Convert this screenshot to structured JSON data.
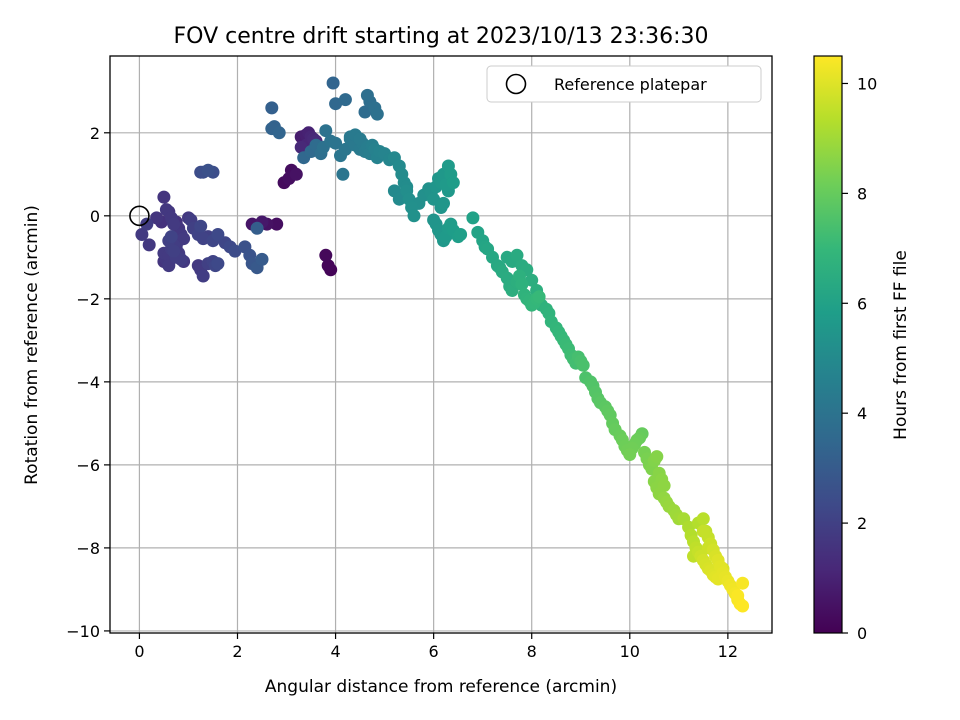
{
  "chart_data": {
    "type": "scatter",
    "title": "FOV centre drift starting at 2023/10/13 23:36:30",
    "xlabel": "Angular distance from reference (arcmin)",
    "ylabel": "Rotation from reference (arcmin)",
    "colorbar_label": "Hours from first FF file",
    "colormap": "viridis",
    "xlim": [
      -0.6,
      12.9
    ],
    "ylim": [
      -10.05,
      3.85
    ],
    "clim": [
      0,
      10.5
    ],
    "xticks": [
      0,
      2,
      4,
      6,
      8,
      10,
      12
    ],
    "yticks": [
      -10,
      -8,
      -6,
      -4,
      -2,
      0,
      2
    ],
    "cticks": [
      0,
      2,
      4,
      6,
      8,
      10
    ],
    "grid": true,
    "legend": {
      "position": "top-right",
      "label": "Reference platepar"
    },
    "reference_point": {
      "x": 0,
      "y": 0
    },
    "colors": {
      "viridis": [
        "#440154",
        "#482878",
        "#3e4a89",
        "#31688e",
        "#26828e",
        "#1f9e89",
        "#35b779",
        "#6ece58",
        "#b5de2b",
        "#fde725"
      ]
    },
    "series": [
      {
        "x": [
          0.05,
          0.15,
          0.2,
          0.35,
          0.45,
          0.5,
          0.55,
          0.6,
          0.65,
          0.7,
          0.75,
          0.8,
          0.85,
          0.5,
          0.55,
          0.6,
          0.65,
          0.7,
          0.75,
          0.8,
          0.85,
          0.9,
          0.5,
          0.6,
          0.7,
          0.8,
          0.6,
          0.65,
          0.7,
          0.75,
          0.9,
          1.0,
          1.05,
          1.1,
          1.2,
          1.25,
          1.3,
          1.4,
          1.5,
          1.6,
          1.75,
          1.85,
          1.95,
          1.25,
          1.3,
          1.4,
          1.2,
          1.25,
          1.3,
          1.4,
          1.5,
          1.55,
          1.6,
          1.5,
          2.15,
          2.25,
          2.3,
          2.4,
          2.5
        ],
        "y": [
          -0.45,
          -0.2,
          -0.7,
          -0.05,
          -0.15,
          0.45,
          0.15,
          0.1,
          -0.05,
          -0.2,
          -0.15,
          -0.3,
          -0.45,
          -0.9,
          -1.05,
          -0.95,
          -0.8,
          -1.0,
          -0.75,
          -0.9,
          -1.05,
          -1.1,
          -1.1,
          -1.2,
          -0.7,
          -0.6,
          -0.6,
          -0.5,
          -0.85,
          -1.0,
          -0.55,
          -0.05,
          -0.1,
          -0.3,
          -0.45,
          -0.25,
          -0.55,
          -0.5,
          -0.6,
          -0.45,
          -0.65,
          -0.75,
          -0.85,
          1.05,
          1.05,
          1.1,
          -1.2,
          -1.3,
          -1.45,
          -1.15,
          -1.1,
          -1.2,
          -1.15,
          1.05,
          -0.75,
          -0.95,
          -1.15,
          -1.25,
          -1.05
        ],
        "t": [
          1.8,
          1.9,
          1.7,
          1.6,
          1.5,
          1.6,
          1.7,
          1.6,
          1.7,
          1.8,
          1.5,
          1.6,
          1.7,
          1.8,
          1.7,
          1.8,
          1.9,
          1.6,
          1.7,
          1.8,
          1.9,
          1.7,
          1.6,
          1.8,
          1.9,
          1.8,
          2.0,
          2.1,
          2.0,
          1.9,
          1.8,
          1.7,
          1.9,
          2.0,
          2.1,
          2.2,
          2.1,
          2.0,
          2.2,
          2.3,
          2.2,
          2.3,
          2.4,
          2.4,
          2.5,
          2.6,
          1.7,
          1.8,
          1.9,
          2.0,
          2.1,
          2.2,
          2.3,
          2.5,
          2.6,
          2.7,
          2.8,
          2.9,
          3.0
        ]
      },
      {
        "x": [
          2.3,
          2.5,
          2.6,
          2.8,
          2.95,
          3.05,
          3.1,
          3.2,
          3.3,
          3.4,
          3.45,
          3.5,
          3.55,
          3.6,
          3.3,
          3.4,
          3.5,
          3.8,
          3.85,
          3.9
        ],
        "y": [
          -0.2,
          -0.15,
          -0.2,
          -0.2,
          0.8,
          0.9,
          1.1,
          1.0,
          1.9,
          1.95,
          2.0,
          1.9,
          1.85,
          1.8,
          1.65,
          1.7,
          1.6,
          -0.95,
          -1.2,
          -1.3
        ],
        "t": [
          0.6,
          0.7,
          0.5,
          0.4,
          0.3,
          0.4,
          0.35,
          0.5,
          0.8,
          0.9,
          1.0,
          1.1,
          1.2,
          1.3,
          1.2,
          1.1,
          1.0,
          0.2,
          0.15,
          0.1
        ]
      },
      {
        "x": [
          2.4,
          2.7,
          2.75,
          2.7,
          2.85,
          3.35,
          3.5,
          3.6,
          3.7,
          3.75,
          3.8,
          3.9,
          4.0,
          4.1,
          4.2,
          4.3,
          4.4,
          4.5,
          4.55,
          4.6,
          4.65,
          4.7,
          4.75,
          4.8,
          4.85,
          4.9,
          5.0,
          5.1,
          4.0,
          4.2,
          4.6,
          4.65,
          4.7,
          4.8,
          4.85,
          3.95,
          4.3,
          4.4,
          4.5,
          4.15
        ],
        "y": [
          -0.3,
          2.6,
          2.15,
          2.1,
          2.0,
          1.4,
          1.55,
          1.7,
          1.5,
          1.65,
          2.05,
          1.8,
          1.75,
          1.45,
          1.6,
          1.85,
          1.7,
          1.6,
          1.75,
          1.55,
          1.65,
          1.5,
          1.7,
          1.6,
          1.4,
          1.55,
          1.5,
          1.35,
          2.7,
          2.8,
          2.5,
          2.9,
          2.75,
          2.6,
          2.45,
          3.2,
          1.9,
          1.95,
          1.85,
          1.0
        ],
        "t": [
          3.1,
          3.2,
          3.3,
          3.3,
          3.4,
          3.5,
          3.6,
          3.7,
          3.8,
          3.9,
          3.95,
          4.0,
          4.05,
          4.1,
          4.15,
          4.2,
          4.25,
          4.3,
          4.35,
          4.4,
          4.45,
          4.5,
          4.55,
          4.6,
          4.65,
          4.7,
          4.75,
          4.8,
          3.5,
          3.6,
          3.7,
          3.8,
          3.75,
          3.85,
          3.9,
          3.4,
          4.2,
          4.3,
          4.35,
          4.1
        ]
      },
      {
        "x": [
          5.2,
          5.3,
          5.35,
          5.4,
          5.45,
          5.5,
          5.55,
          5.6,
          5.2,
          5.3,
          5.45,
          5.7,
          5.8,
          5.9,
          5.95,
          6.0,
          6.05,
          6.1,
          6.15,
          6.2,
          6.25,
          6.3,
          6.35,
          6.4,
          6.3,
          6.2,
          6.15,
          6.0,
          6.05,
          6.1,
          6.15,
          6.2,
          6.25,
          6.3,
          6.35,
          6.4,
          6.5,
          6.55
        ],
        "y": [
          1.4,
          1.2,
          1.0,
          0.8,
          0.6,
          0.4,
          0.2,
          0.0,
          0.6,
          0.4,
          0.7,
          0.3,
          0.5,
          0.65,
          0.55,
          0.4,
          0.7,
          0.9,
          0.8,
          1.0,
          0.75,
          1.2,
          1.0,
          0.8,
          0.6,
          0.3,
          0.2,
          -0.1,
          -0.2,
          -0.35,
          -0.45,
          -0.6,
          -0.5,
          -0.3,
          -0.2,
          -0.35,
          -0.5,
          -0.45
        ],
        "t": [
          4.9,
          5.0,
          5.05,
          5.1,
          5.15,
          5.2,
          5.25,
          5.3,
          4.95,
          5.0,
          5.1,
          5.2,
          5.25,
          5.3,
          5.35,
          5.4,
          5.45,
          5.5,
          5.55,
          5.6,
          5.65,
          5.7,
          5.75,
          5.8,
          5.6,
          5.5,
          5.45,
          5.4,
          5.45,
          5.5,
          5.55,
          5.6,
          5.65,
          5.7,
          5.75,
          5.8,
          5.85,
          5.9
        ]
      },
      {
        "x": [
          6.8,
          6.9,
          7.0,
          7.05,
          7.1,
          7.2,
          7.3,
          7.35,
          7.4,
          7.5,
          7.55,
          7.6,
          7.7,
          7.75,
          7.8,
          7.85,
          7.9,
          7.95,
          8.0,
          8.05,
          8.1,
          8.15,
          7.5,
          7.6,
          7.7,
          7.8,
          7.9,
          8.0,
          8.1,
          8.2,
          8.3,
          8.35,
          8.4,
          8.5,
          8.55,
          8.6,
          8.65,
          8.7,
          8.75,
          8.8,
          8.85,
          8.9,
          8.95,
          9.0,
          9.05
        ],
        "y": [
          -0.05,
          -0.4,
          -0.6,
          -0.75,
          -0.8,
          -1.0,
          -1.2,
          -1.25,
          -1.35,
          -1.5,
          -1.7,
          -1.8,
          -1.6,
          -1.45,
          -1.65,
          -1.9,
          -2.0,
          -2.05,
          -2.15,
          -2.1,
          -2.0,
          -1.95,
          -1.0,
          -1.1,
          -0.95,
          -1.2,
          -1.3,
          -1.55,
          -1.8,
          -2.15,
          -2.25,
          -2.35,
          -2.55,
          -2.7,
          -2.8,
          -2.9,
          -3.0,
          -3.1,
          -3.2,
          -3.35,
          -3.45,
          -3.55,
          -3.4,
          -3.5,
          -3.6
        ],
        "t": [
          6.0,
          6.05,
          6.1,
          6.15,
          6.2,
          6.25,
          6.3,
          6.35,
          6.4,
          6.45,
          6.5,
          6.55,
          6.6,
          6.65,
          6.7,
          6.75,
          6.8,
          6.85,
          6.9,
          6.95,
          7.0,
          7.05,
          6.3,
          6.35,
          6.4,
          6.45,
          6.5,
          6.55,
          6.6,
          6.7,
          6.75,
          6.8,
          6.85,
          6.9,
          6.95,
          7.0,
          7.05,
          7.1,
          7.15,
          7.2,
          7.25,
          7.3,
          7.35,
          7.4,
          7.45
        ]
      },
      {
        "x": [
          9.1,
          9.2,
          9.25,
          9.3,
          9.35,
          9.4,
          9.5,
          9.55,
          9.6,
          9.65,
          9.7,
          9.8,
          9.85,
          9.9,
          9.95,
          10.0,
          10.05,
          10.1,
          10.15,
          10.2,
          10.25,
          10.3,
          10.35,
          10.4,
          10.45,
          10.5,
          10.55,
          10.6,
          10.65,
          10.7,
          10.5,
          10.55,
          10.6,
          10.7,
          10.75,
          10.8,
          10.9,
          10.95,
          11.0
        ],
        "y": [
          -3.9,
          -4.0,
          -4.1,
          -4.25,
          -4.4,
          -4.5,
          -4.6,
          -4.7,
          -4.8,
          -5.0,
          -5.15,
          -5.3,
          -5.4,
          -5.55,
          -5.65,
          -5.75,
          -5.6,
          -5.5,
          -5.4,
          -5.35,
          -5.25,
          -5.7,
          -5.85,
          -6.0,
          -6.1,
          -5.9,
          -5.8,
          -6.2,
          -6.35,
          -6.5,
          -6.4,
          -6.55,
          -6.7,
          -6.8,
          -6.9,
          -7.0,
          -7.1,
          -7.2,
          -7.3
        ],
        "t": [
          7.5,
          7.55,
          7.6,
          7.65,
          7.7,
          7.75,
          7.8,
          7.85,
          7.9,
          7.95,
          8.0,
          8.05,
          8.1,
          8.15,
          8.2,
          8.25,
          8.2,
          8.15,
          8.1,
          8.05,
          8.0,
          8.3,
          8.35,
          8.4,
          8.45,
          8.5,
          8.55,
          8.6,
          8.65,
          8.7,
          8.6,
          8.65,
          8.7,
          8.75,
          8.8,
          8.85,
          8.9,
          8.95,
          9.0
        ]
      },
      {
        "x": [
          11.1,
          11.2,
          11.25,
          11.3,
          11.35,
          11.4,
          11.45,
          11.5,
          11.55,
          11.6,
          11.65,
          11.7,
          11.75,
          11.8,
          11.85,
          11.9,
          11.3,
          11.4,
          11.5,
          11.55,
          11.6,
          11.65,
          11.7,
          11.75,
          11.8,
          11.85,
          11.9,
          11.95,
          12.0,
          12.05,
          12.1,
          12.15,
          12.2,
          12.25,
          12.3,
          12.3,
          12.2,
          11.5,
          11.6
        ],
        "y": [
          -7.3,
          -7.5,
          -7.7,
          -7.85,
          -8.0,
          -8.1,
          -8.2,
          -8.3,
          -8.4,
          -8.5,
          -8.55,
          -8.65,
          -8.7,
          -8.75,
          -8.6,
          -8.5,
          -8.2,
          -7.4,
          -7.3,
          -7.6,
          -7.75,
          -7.9,
          -8.05,
          -8.2,
          -8.3,
          -8.45,
          -8.6,
          -8.7,
          -8.8,
          -8.9,
          -9.0,
          -9.1,
          -9.25,
          -9.35,
          -9.4,
          -8.85,
          -9.15,
          -7.6,
          -8.0
        ],
        "t": [
          9.1,
          9.2,
          9.3,
          9.4,
          9.5,
          9.6,
          9.7,
          9.8,
          9.85,
          9.9,
          9.95,
          10.0,
          10.05,
          10.1,
          10.0,
          9.9,
          9.5,
          9.3,
          9.4,
          9.5,
          9.6,
          9.7,
          9.8,
          9.9,
          10.0,
          10.05,
          10.1,
          10.15,
          10.2,
          10.25,
          10.3,
          10.35,
          10.4,
          10.45,
          10.5,
          10.4,
          10.45,
          9.6,
          9.7
        ]
      }
    ]
  }
}
